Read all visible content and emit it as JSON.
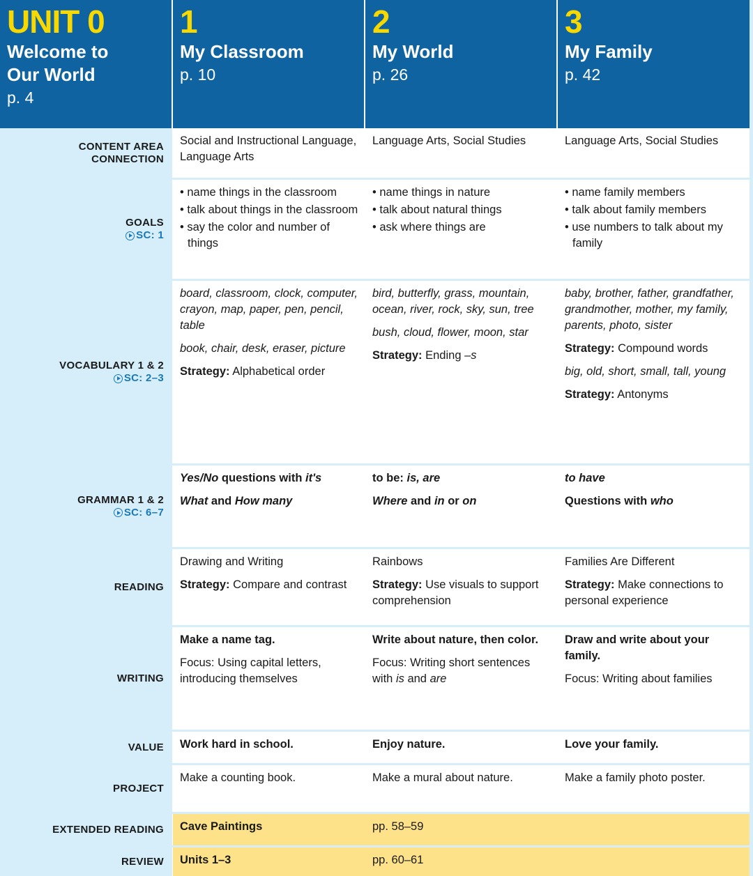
{
  "colors": {
    "header_blue": "#0f63a0",
    "unit_yellow": "#f7d800",
    "label_bg": "#d5eefa",
    "highlight_row": "#fde28a",
    "sc_blue": "#1a78b8"
  },
  "units": [
    {
      "num": "UNIT 0",
      "title_lines": [
        "Welcome to",
        "Our World"
      ],
      "page": "p. 4"
    },
    {
      "num": "1",
      "title_lines": [
        "My Classroom"
      ],
      "page": "p. 10"
    },
    {
      "num": "2",
      "title_lines": [
        "My World"
      ],
      "page": "p. 26"
    },
    {
      "num": "3",
      "title_lines": [
        "My Family"
      ],
      "page": "p. 42"
    }
  ],
  "rows": [
    {
      "label_lines": [
        "CONTENT AREA",
        "CONNECTION"
      ],
      "sc": null,
      "cells": [
        [
          {
            "segs": [
              {
                "t": "Social and Instructional Language, Language Arts",
                "s": ""
              }
            ]
          }
        ],
        [
          {
            "segs": [
              {
                "t": "Language Arts, Social Studies",
                "s": ""
              }
            ]
          }
        ],
        [
          {
            "segs": [
              {
                "t": "Language Arts, Social Studies",
                "s": ""
              }
            ]
          }
        ]
      ]
    },
    {
      "label_lines": [
        "GOALS"
      ],
      "sc": "SC: 1",
      "cells": [
        [
          {
            "bullet": true,
            "segs": [
              {
                "t": "name things in the classroom",
                "s": ""
              }
            ]
          },
          {
            "bullet": true,
            "segs": [
              {
                "t": "talk about things in the classroom",
                "s": ""
              }
            ]
          },
          {
            "bullet": true,
            "segs": [
              {
                "t": "say the color and number of things",
                "s": ""
              }
            ]
          }
        ],
        [
          {
            "bullet": true,
            "segs": [
              {
                "t": "name things in nature",
                "s": ""
              }
            ]
          },
          {
            "bullet": true,
            "segs": [
              {
                "t": "talk about natural things",
                "s": ""
              }
            ]
          },
          {
            "bullet": true,
            "segs": [
              {
                "t": "ask where things are",
                "s": ""
              }
            ]
          }
        ],
        [
          {
            "bullet": true,
            "segs": [
              {
                "t": "name family members",
                "s": ""
              }
            ]
          },
          {
            "bullet": true,
            "segs": [
              {
                "t": "talk about family members",
                "s": ""
              }
            ]
          },
          {
            "bullet": true,
            "segs": [
              {
                "t": "use numbers to talk about my family",
                "s": ""
              }
            ]
          }
        ]
      ]
    },
    {
      "label_lines": [
        "VOCABULARY 1 & 2"
      ],
      "sc": "SC: 2–3",
      "cells": [
        [
          {
            "segs": [
              {
                "t": "board, classroom, clock, computer, crayon, map, paper, pen, pencil, table",
                "s": "i"
              }
            ]
          },
          {
            "segs": [
              {
                "t": "book, chair, desk, eraser, picture",
                "s": "i"
              }
            ]
          },
          {
            "segs": [
              {
                "t": "Strategy:",
                "s": "b"
              },
              {
                "t": " Alphabetical order",
                "s": ""
              }
            ]
          }
        ],
        [
          {
            "segs": [
              {
                "t": "bird, butterfly, grass, mountain, ocean, river, rock, sky, sun, tree",
                "s": "i"
              }
            ]
          },
          {
            "segs": [
              {
                "t": "bush, cloud, flower, moon, star",
                "s": "i"
              }
            ]
          },
          {
            "segs": [
              {
                "t": "Strategy:",
                "s": "b"
              },
              {
                "t": " Ending ",
                "s": ""
              },
              {
                "t": "–s",
                "s": "i"
              }
            ]
          }
        ],
        [
          {
            "segs": [
              {
                "t": "baby, brother, father, grandfather, grandmother, mother, my family, parents, photo, sister",
                "s": "i"
              }
            ]
          },
          {
            "segs": [
              {
                "t": "Strategy:",
                "s": "b"
              },
              {
                "t": " Compound words",
                "s": ""
              }
            ]
          },
          {
            "segs": [
              {
                "t": "big, old, short, small, tall, young",
                "s": "i"
              }
            ]
          },
          {
            "segs": [
              {
                "t": "Strategy:",
                "s": "b"
              },
              {
                "t": " Antonyms",
                "s": ""
              }
            ]
          }
        ]
      ]
    },
    {
      "label_lines": [
        "GRAMMAR 1 & 2"
      ],
      "sc": "SC: 6–7",
      "cells": [
        [
          {
            "segs": [
              {
                "t": "Yes/No",
                "s": "bi"
              },
              {
                "t": " questions with ",
                "s": "b"
              },
              {
                "t": "it's",
                "s": "bi"
              }
            ]
          },
          {
            "segs": [
              {
                "t": "What",
                "s": "bi"
              },
              {
                "t": " and ",
                "s": "b"
              },
              {
                "t": "How many",
                "s": "bi"
              }
            ]
          }
        ],
        [
          {
            "segs": [
              {
                "t": "to be: ",
                "s": "b"
              },
              {
                "t": "is, are",
                "s": "bi"
              }
            ]
          },
          {
            "segs": [
              {
                "t": "Where",
                "s": "bi"
              },
              {
                "t": " and ",
                "s": "b"
              },
              {
                "t": "in",
                "s": "bi"
              },
              {
                "t": " or ",
                "s": "b"
              },
              {
                "t": "on",
                "s": "bi"
              }
            ]
          }
        ],
        [
          {
            "segs": [
              {
                "t": "to have",
                "s": "bi"
              }
            ]
          },
          {
            "segs": [
              {
                "t": "Questions with ",
                "s": "b"
              },
              {
                "t": "who",
                "s": "bi"
              }
            ]
          }
        ]
      ]
    },
    {
      "label_lines": [
        "READING"
      ],
      "sc": null,
      "cells": [
        [
          {
            "segs": [
              {
                "t": "Drawing and Writing",
                "s": ""
              }
            ]
          },
          {
            "segs": [
              {
                "t": "Strategy:",
                "s": "b"
              },
              {
                "t": " Compare and contrast",
                "s": ""
              }
            ]
          }
        ],
        [
          {
            "segs": [
              {
                "t": "Rainbows",
                "s": ""
              }
            ]
          },
          {
            "segs": [
              {
                "t": "Strategy:",
                "s": "b"
              },
              {
                "t": " Use visuals to support comprehension",
                "s": ""
              }
            ]
          }
        ],
        [
          {
            "segs": [
              {
                "t": "Families Are Different",
                "s": ""
              }
            ]
          },
          {
            "segs": [
              {
                "t": "Strategy:",
                "s": "b"
              },
              {
                "t": " Make connections to personal experience",
                "s": ""
              }
            ]
          }
        ]
      ]
    },
    {
      "label_lines": [
        "WRITING"
      ],
      "sc": null,
      "cells": [
        [
          {
            "segs": [
              {
                "t": "Make a name tag.",
                "s": "b"
              }
            ]
          },
          {
            "segs": [
              {
                "t": "Focus: Using capital letters, introducing themselves",
                "s": ""
              }
            ]
          }
        ],
        [
          {
            "segs": [
              {
                "t": "Write about nature, then color.",
                "s": "b"
              }
            ]
          },
          {
            "segs": [
              {
                "t": "Focus: Writing short sentences with ",
                "s": ""
              },
              {
                "t": "is",
                "s": "i"
              },
              {
                "t": " and ",
                "s": ""
              },
              {
                "t": "are",
                "s": "i"
              }
            ]
          }
        ],
        [
          {
            "segs": [
              {
                "t": "Draw and write about your family.",
                "s": "b"
              }
            ]
          },
          {
            "segs": [
              {
                "t": "Focus: Writing about families",
                "s": ""
              }
            ]
          }
        ]
      ]
    },
    {
      "label_lines": [
        "VALUE"
      ],
      "sc": null,
      "cells": [
        [
          {
            "segs": [
              {
                "t": "Work hard in school.",
                "s": "b"
              }
            ]
          }
        ],
        [
          {
            "segs": [
              {
                "t": "Enjoy nature.",
                "s": "b"
              }
            ]
          }
        ],
        [
          {
            "segs": [
              {
                "t": "Love your family.",
                "s": "b"
              }
            ]
          }
        ]
      ]
    },
    {
      "label_lines": [
        "PROJECT"
      ],
      "sc": null,
      "cells": [
        [
          {
            "segs": [
              {
                "t": "Make a counting book.",
                "s": ""
              }
            ]
          }
        ],
        [
          {
            "segs": [
              {
                "t": "Make a mural about nature.",
                "s": ""
              }
            ]
          }
        ],
        [
          {
            "segs": [
              {
                "t": "Make a family photo poster.",
                "s": ""
              }
            ]
          }
        ]
      ]
    },
    {
      "label_lines": [
        "EXTENDED READING"
      ],
      "sc": null,
      "highlight": true,
      "cells": [
        [
          {
            "segs": [
              {
                "t": "Cave Paintings",
                "s": "b"
              }
            ]
          }
        ],
        [
          {
            "segs": [
              {
                "t": "pp. 58–59",
                "s": ""
              }
            ]
          }
        ]
      ]
    },
    {
      "label_lines": [
        "REVIEW"
      ],
      "sc": null,
      "highlight": true,
      "cells": [
        [
          {
            "segs": [
              {
                "t": "Units 1–3",
                "s": "b"
              }
            ]
          }
        ],
        [
          {
            "segs": [
              {
                "t": "pp. 60–61",
                "s": ""
              }
            ]
          }
        ]
      ]
    }
  ]
}
